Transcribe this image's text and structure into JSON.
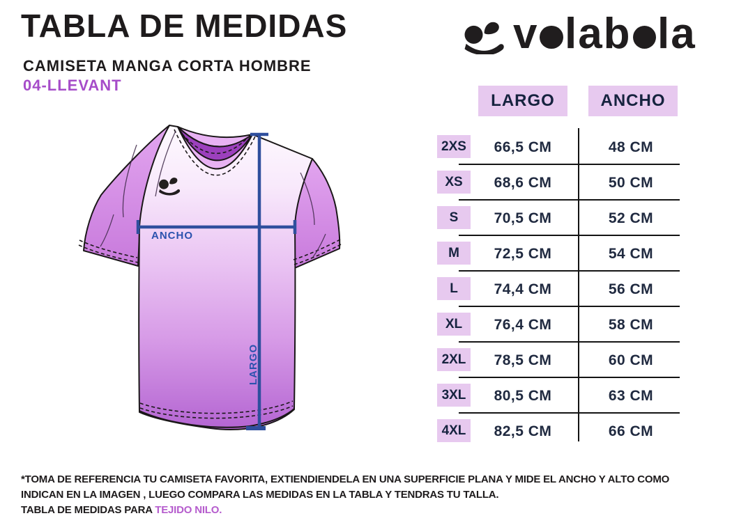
{
  "header": {
    "title": "TABLA DE MEDIDAS",
    "subtitle": "CAMISETA MANGA CORTA HOMBRE",
    "model": "04-LLEVANT"
  },
  "logo": {
    "brand": "volabola"
  },
  "diagram": {
    "width_label": "ANCHO",
    "length_label": "LARGO"
  },
  "table": {
    "columns": [
      "LARGO",
      "ANCHO"
    ],
    "rows": [
      {
        "size": "2XS",
        "largo": "66,5 CM",
        "ancho": "48 CM"
      },
      {
        "size": "XS",
        "largo": "68,6 CM",
        "ancho": "50 CM"
      },
      {
        "size": "S",
        "largo": "70,5 CM",
        "ancho": "52 CM"
      },
      {
        "size": "M",
        "largo": "72,5 CM",
        "ancho": "54 CM"
      },
      {
        "size": "L",
        "largo": "74,4 CM",
        "ancho": "56 CM"
      },
      {
        "size": "XL",
        "largo": "76,4 CM",
        "ancho": "58 CM"
      },
      {
        "size": "2XL",
        "largo": "78,5 CM",
        "ancho": "60 CM"
      },
      {
        "size": "3XL",
        "largo": "80,5 CM",
        "ancho": "63 CM"
      },
      {
        "size": "4XL",
        "largo": "82,5 CM",
        "ancho": "66 CM"
      }
    ]
  },
  "footer": {
    "line1": "*TOMA DE REFERENCIA TU CAMISETA FAVORITA, EXTIENDIENDELA EN UNA SUPERFICIE PLANA Y MIDE EL ANCHO Y ALTO COMO",
    "line2": "INDICAN EN LA IMAGEN , LUEGO COMPARA LAS MEDIDAS  EN LA TABLA Y TENDRAS TU TALLA.",
    "line3_prefix": "TABLA DE MEDIDAS PARA ",
    "line3_link": "TEJIDO NILO."
  },
  "colors": {
    "accent_purple": "#a64cc9",
    "link_purple": "#b55ccd",
    "chip_background": "#e7c9ef",
    "table_text_navy": "#16233f",
    "measure_line_blue": "#2f4f9d",
    "measure_label_blue": "#2b52ae",
    "shirt_sleeve_purple": "#d193e4",
    "shirt_bottom_purple": "#b465d2",
    "collar_inner_purple": "#9c40bd",
    "ink_black": "#1e1b1c"
  }
}
